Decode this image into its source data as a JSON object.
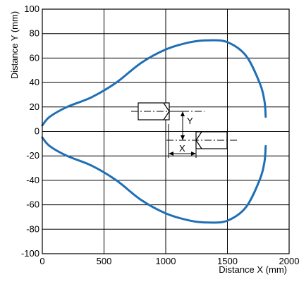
{
  "chart_data": {
    "type": "line",
    "title": "",
    "xlabel": "Distance X (mm)",
    "ylabel": "Distance Y (mm)",
    "xlim": [
      0,
      2000
    ],
    "ylim": [
      -100,
      100
    ],
    "x_ticks": [
      0,
      500,
      1000,
      1500,
      2000
    ],
    "y_ticks": [
      100,
      80,
      60,
      40,
      20,
      0,
      -20,
      -40,
      -60,
      -80,
      -100
    ],
    "x_tick_labels": [
      "0",
      "500",
      "1000",
      "1500",
      "2000"
    ],
    "y_tick_labels": [
      "100",
      "80",
      "60",
      "40",
      "20",
      "0",
      "-20",
      "-40",
      "-60",
      "-80",
      "-100"
    ],
    "grid": true,
    "series": [
      {
        "color": "#1f6fb5",
        "x": [
          0,
          60,
          200,
          400,
          600,
          800,
          1000,
          1200,
          1350,
          1500,
          1650,
          1760,
          1800,
          1810
        ],
        "y": [
          5,
          12,
          20,
          28,
          40,
          56,
          67,
          73,
          74.5,
          73,
          62,
          40,
          25,
          12
        ]
      },
      {
        "color": "#1f6fb5",
        "x": [
          0,
          60,
          200,
          400,
          600,
          800,
          1000,
          1200,
          1350,
          1500,
          1650,
          1760,
          1800,
          1810
        ],
        "y": [
          -5,
          -12,
          -20,
          -28,
          -40,
          -56,
          -67,
          -73,
          -74.5,
          -73,
          -62,
          -40,
          -25,
          -12
        ]
      }
    ],
    "annotations": {
      "dimension_y_label": "Y",
      "dimension_x_label": "X"
    }
  }
}
